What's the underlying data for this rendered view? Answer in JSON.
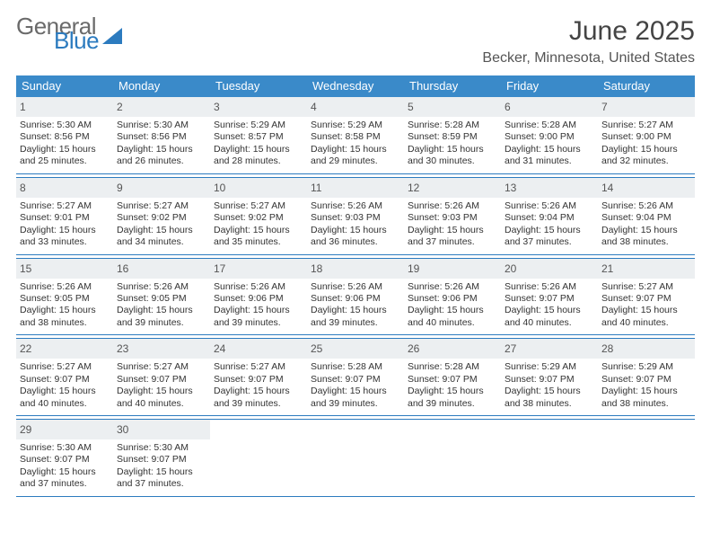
{
  "brand": {
    "word1": "General",
    "word2": "Blue"
  },
  "title": "June 2025",
  "location": "Becker, Minnesota, United States",
  "colors": {
    "header_bg": "#3a8ac9",
    "rule": "#2c7bbf",
    "daynum_bg": "#eceff1",
    "text": "#333333"
  },
  "day_headers": [
    "Sunday",
    "Monday",
    "Tuesday",
    "Wednesday",
    "Thursday",
    "Friday",
    "Saturday"
  ],
  "typography": {
    "title_size": 30,
    "subtitle_size": 16,
    "header_size": 13,
    "body_size": 10.5
  },
  "weeks": [
    [
      {
        "n": "1",
        "sr": "Sunrise: 5:30 AM",
        "ss": "Sunset: 8:56 PM",
        "d1": "Daylight: 15 hours",
        "d2": "and 25 minutes."
      },
      {
        "n": "2",
        "sr": "Sunrise: 5:30 AM",
        "ss": "Sunset: 8:56 PM",
        "d1": "Daylight: 15 hours",
        "d2": "and 26 minutes."
      },
      {
        "n": "3",
        "sr": "Sunrise: 5:29 AM",
        "ss": "Sunset: 8:57 PM",
        "d1": "Daylight: 15 hours",
        "d2": "and 28 minutes."
      },
      {
        "n": "4",
        "sr": "Sunrise: 5:29 AM",
        "ss": "Sunset: 8:58 PM",
        "d1": "Daylight: 15 hours",
        "d2": "and 29 minutes."
      },
      {
        "n": "5",
        "sr": "Sunrise: 5:28 AM",
        "ss": "Sunset: 8:59 PM",
        "d1": "Daylight: 15 hours",
        "d2": "and 30 minutes."
      },
      {
        "n": "6",
        "sr": "Sunrise: 5:28 AM",
        "ss": "Sunset: 9:00 PM",
        "d1": "Daylight: 15 hours",
        "d2": "and 31 minutes."
      },
      {
        "n": "7",
        "sr": "Sunrise: 5:27 AM",
        "ss": "Sunset: 9:00 PM",
        "d1": "Daylight: 15 hours",
        "d2": "and 32 minutes."
      }
    ],
    [
      {
        "n": "8",
        "sr": "Sunrise: 5:27 AM",
        "ss": "Sunset: 9:01 PM",
        "d1": "Daylight: 15 hours",
        "d2": "and 33 minutes."
      },
      {
        "n": "9",
        "sr": "Sunrise: 5:27 AM",
        "ss": "Sunset: 9:02 PM",
        "d1": "Daylight: 15 hours",
        "d2": "and 34 minutes."
      },
      {
        "n": "10",
        "sr": "Sunrise: 5:27 AM",
        "ss": "Sunset: 9:02 PM",
        "d1": "Daylight: 15 hours",
        "d2": "and 35 minutes."
      },
      {
        "n": "11",
        "sr": "Sunrise: 5:26 AM",
        "ss": "Sunset: 9:03 PM",
        "d1": "Daylight: 15 hours",
        "d2": "and 36 minutes."
      },
      {
        "n": "12",
        "sr": "Sunrise: 5:26 AM",
        "ss": "Sunset: 9:03 PM",
        "d1": "Daylight: 15 hours",
        "d2": "and 37 minutes."
      },
      {
        "n": "13",
        "sr": "Sunrise: 5:26 AM",
        "ss": "Sunset: 9:04 PM",
        "d1": "Daylight: 15 hours",
        "d2": "and 37 minutes."
      },
      {
        "n": "14",
        "sr": "Sunrise: 5:26 AM",
        "ss": "Sunset: 9:04 PM",
        "d1": "Daylight: 15 hours",
        "d2": "and 38 minutes."
      }
    ],
    [
      {
        "n": "15",
        "sr": "Sunrise: 5:26 AM",
        "ss": "Sunset: 9:05 PM",
        "d1": "Daylight: 15 hours",
        "d2": "and 38 minutes."
      },
      {
        "n": "16",
        "sr": "Sunrise: 5:26 AM",
        "ss": "Sunset: 9:05 PM",
        "d1": "Daylight: 15 hours",
        "d2": "and 39 minutes."
      },
      {
        "n": "17",
        "sr": "Sunrise: 5:26 AM",
        "ss": "Sunset: 9:06 PM",
        "d1": "Daylight: 15 hours",
        "d2": "and 39 minutes."
      },
      {
        "n": "18",
        "sr": "Sunrise: 5:26 AM",
        "ss": "Sunset: 9:06 PM",
        "d1": "Daylight: 15 hours",
        "d2": "and 39 minutes."
      },
      {
        "n": "19",
        "sr": "Sunrise: 5:26 AM",
        "ss": "Sunset: 9:06 PM",
        "d1": "Daylight: 15 hours",
        "d2": "and 40 minutes."
      },
      {
        "n": "20",
        "sr": "Sunrise: 5:26 AM",
        "ss": "Sunset: 9:07 PM",
        "d1": "Daylight: 15 hours",
        "d2": "and 40 minutes."
      },
      {
        "n": "21",
        "sr": "Sunrise: 5:27 AM",
        "ss": "Sunset: 9:07 PM",
        "d1": "Daylight: 15 hours",
        "d2": "and 40 minutes."
      }
    ],
    [
      {
        "n": "22",
        "sr": "Sunrise: 5:27 AM",
        "ss": "Sunset: 9:07 PM",
        "d1": "Daylight: 15 hours",
        "d2": "and 40 minutes."
      },
      {
        "n": "23",
        "sr": "Sunrise: 5:27 AM",
        "ss": "Sunset: 9:07 PM",
        "d1": "Daylight: 15 hours",
        "d2": "and 40 minutes."
      },
      {
        "n": "24",
        "sr": "Sunrise: 5:27 AM",
        "ss": "Sunset: 9:07 PM",
        "d1": "Daylight: 15 hours",
        "d2": "and 39 minutes."
      },
      {
        "n": "25",
        "sr": "Sunrise: 5:28 AM",
        "ss": "Sunset: 9:07 PM",
        "d1": "Daylight: 15 hours",
        "d2": "and 39 minutes."
      },
      {
        "n": "26",
        "sr": "Sunrise: 5:28 AM",
        "ss": "Sunset: 9:07 PM",
        "d1": "Daylight: 15 hours",
        "d2": "and 39 minutes."
      },
      {
        "n": "27",
        "sr": "Sunrise: 5:29 AM",
        "ss": "Sunset: 9:07 PM",
        "d1": "Daylight: 15 hours",
        "d2": "and 38 minutes."
      },
      {
        "n": "28",
        "sr": "Sunrise: 5:29 AM",
        "ss": "Sunset: 9:07 PM",
        "d1": "Daylight: 15 hours",
        "d2": "and 38 minutes."
      }
    ],
    [
      {
        "n": "29",
        "sr": "Sunrise: 5:30 AM",
        "ss": "Sunset: 9:07 PM",
        "d1": "Daylight: 15 hours",
        "d2": "and 37 minutes."
      },
      {
        "n": "30",
        "sr": "Sunrise: 5:30 AM",
        "ss": "Sunset: 9:07 PM",
        "d1": "Daylight: 15 hours",
        "d2": "and 37 minutes."
      },
      null,
      null,
      null,
      null,
      null
    ]
  ]
}
